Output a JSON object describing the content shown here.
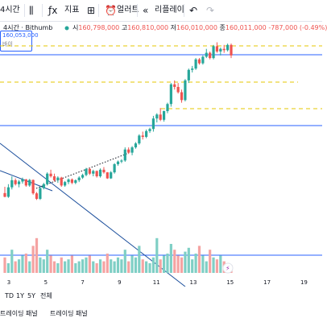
{
  "toolbar": {
    "interval_label": "4시간",
    "indicators_label": "지표",
    "alert_label": "얼러트",
    "replay_label": "리플레이"
  },
  "legend": {
    "title": "4시간 · Bithumb",
    "open_key": "시",
    "open": "160,798,000",
    "high_key": "고",
    "high": "160,810,000",
    "low_key": "저",
    "low": "160,010,000",
    "close_key": "종",
    "close": "160,011,000",
    "change": "-787,000 (-0.49%)"
  },
  "price_box": {
    "value": "160,053,000",
    "label": "바이"
  },
  "colors": {
    "up": "#26a69a",
    "down": "#ef5350",
    "line": "#2962ff",
    "dash": "#e6c700"
  },
  "x_axis": {
    "ticks": [
      {
        "label": "3"
      },
      {
        "label": "5"
      },
      {
        "label": "7"
      },
      {
        "label": "9"
      },
      {
        "label": "11"
      },
      {
        "label": "13"
      },
      {
        "label": "15"
      },
      {
        "label": "17"
      },
      {
        "label": "19"
      }
    ]
  },
  "timeframes": [
    "TD",
    "1Y",
    "5Y",
    "전체"
  ],
  "panel_tabs": [
    "트레이딩 패널",
    "트레이딩 패널"
  ],
  "chart_data": {
    "type": "candlestick",
    "candles": [
      [
        126,
        150,
        110,
        112
      ],
      [
        112,
        160,
        108,
        148
      ],
      [
        148,
        190,
        140,
        175
      ],
      [
        175,
        182,
        155,
        160
      ],
      [
        160,
        176,
        148,
        170
      ],
      [
        170,
        185,
        162,
        178
      ],
      [
        178,
        180,
        150,
        155
      ],
      [
        155,
        180,
        150,
        176
      ],
      [
        176,
        178,
        120,
        125
      ],
      [
        125,
        130,
        100,
        104
      ],
      [
        104,
        150,
        100,
        145
      ],
      [
        145,
        165,
        140,
        160
      ],
      [
        160,
        205,
        155,
        200
      ],
      [
        200,
        215,
        185,
        190
      ],
      [
        190,
        200,
        170,
        175
      ],
      [
        175,
        190,
        165,
        185
      ],
      [
        185,
        188,
        150,
        155
      ],
      [
        155,
        172,
        150,
        168
      ],
      [
        168,
        182,
        160,
        178
      ],
      [
        178,
        182,
        160,
        165
      ],
      [
        165,
        178,
        160,
        175
      ],
      [
        175,
        190,
        168,
        185
      ],
      [
        185,
        200,
        180,
        195
      ],
      [
        195,
        222,
        190,
        218
      ],
      [
        218,
        222,
        195,
        200
      ],
      [
        200,
        215,
        190,
        210
      ],
      [
        210,
        212,
        185,
        190
      ],
      [
        190,
        220,
        185,
        215
      ],
      [
        215,
        225,
        200,
        205
      ],
      [
        205,
        206,
        180,
        182
      ],
      [
        182,
        210,
        180,
        205
      ],
      [
        205,
        240,
        200,
        236
      ],
      [
        236,
        250,
        230,
        246
      ],
      [
        246,
        255,
        240,
        250
      ],
      [
        250,
        300,
        245,
        292
      ],
      [
        292,
        300,
        275,
        280
      ],
      [
        280,
        305,
        270,
        300
      ],
      [
        300,
        320,
        295,
        315
      ],
      [
        315,
        350,
        310,
        345
      ],
      [
        345,
        360,
        330,
        340
      ],
      [
        340,
        368,
        335,
        362
      ],
      [
        362,
        375,
        355,
        370
      ],
      [
        370,
        420,
        360,
        410
      ],
      [
        410,
        430,
        395,
        425
      ],
      [
        425,
        450,
        400,
        405
      ],
      [
        405,
        440,
        398,
        438
      ],
      [
        438,
        470,
        430,
        465
      ],
      [
        465,
        545,
        455,
        540
      ],
      [
        540,
        555,
        520,
        530
      ],
      [
        530,
        545,
        505,
        510
      ],
      [
        510,
        520,
        470,
        480
      ],
      [
        480,
        560,
        475,
        555
      ],
      [
        555,
        600,
        545,
        595
      ],
      [
        595,
        610,
        585,
        600
      ],
      [
        600,
        640,
        595,
        635
      ],
      [
        635,
        640,
        615,
        620
      ],
      [
        620,
        650,
        615,
        645
      ],
      [
        645,
        675,
        640,
        660
      ],
      [
        660,
        665,
        635,
        640
      ],
      [
        640,
        690,
        635,
        685
      ],
      [
        685,
        700,
        660,
        665
      ],
      [
        665,
        680,
        650,
        675
      ],
      [
        675,
        690,
        660,
        670
      ],
      [
        670,
        695,
        665,
        690
      ],
      [
        690,
        695,
        640,
        650
      ]
    ],
    "volume": [
      8,
      5,
      12,
      6,
      7,
      9,
      10,
      6,
      14,
      18,
      8,
      7,
      12,
      9,
      6,
      5,
      8,
      6,
      7,
      9,
      5,
      6,
      7,
      8,
      9,
      6,
      5,
      7,
      6,
      10,
      7,
      6,
      8,
      7,
      12,
      6,
      9,
      8,
      14,
      7,
      6,
      5,
      8,
      18,
      7,
      9,
      10,
      15,
      12,
      9,
      8,
      11,
      13,
      7,
      10,
      14,
      9,
      6,
      12,
      8,
      7,
      9,
      6,
      5,
      4
    ]
  }
}
